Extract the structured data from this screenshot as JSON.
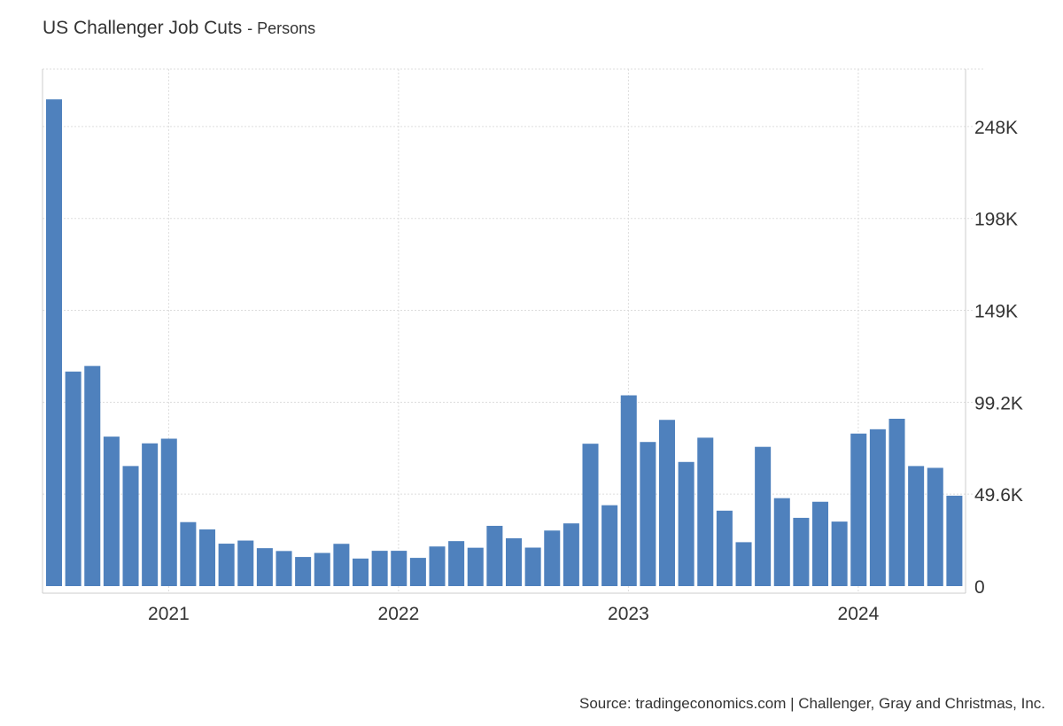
{
  "chart_data": {
    "type": "bar",
    "title": "US Challenger Job Cuts",
    "subtitle": "- Persons",
    "xlabel": "",
    "ylabel": "",
    "source": "Source: tradingeconomics.com | Challenger, Gray and Christmas, Inc.",
    "start_month": "2020-07",
    "end_month": "2024-06",
    "values": [
      262649,
      115762,
      118804,
      80666,
      64797,
      77030,
      79552,
      34531,
      30603,
      22913,
      24586,
      20476,
      18942,
      15723,
      17895,
      22822,
      14875,
      19052,
      19064,
      15245,
      21387,
      24286,
      20712,
      32517,
      25810,
      20781,
      29989,
      33843,
      76835,
      43651,
      102943,
      77770,
      89703,
      66995,
      80089,
      40709,
      23697,
      75151,
      47457,
      36836,
      45510,
      34817,
      82307,
      84638,
      90309,
      64789,
      63816,
      48786
    ],
    "ylim": [
      0,
      279000
    ],
    "yticks": [
      {
        "value": 0,
        "label": "0"
      },
      {
        "value": 49600,
        "label": "49.6K"
      },
      {
        "value": 99200,
        "label": "99.2K"
      },
      {
        "value": 148800,
        "label": "149K"
      },
      {
        "value": 198400,
        "label": "198K"
      },
      {
        "value": 248000,
        "label": "248K"
      }
    ],
    "xticks": [
      {
        "index": 6,
        "label": "2021"
      },
      {
        "index": 18,
        "label": "2022"
      },
      {
        "index": 30,
        "label": "2023"
      },
      {
        "index": 42,
        "label": "2024"
      }
    ],
    "bar_color": "#4f81bd",
    "grid": true,
    "y_axis_position": "right"
  }
}
